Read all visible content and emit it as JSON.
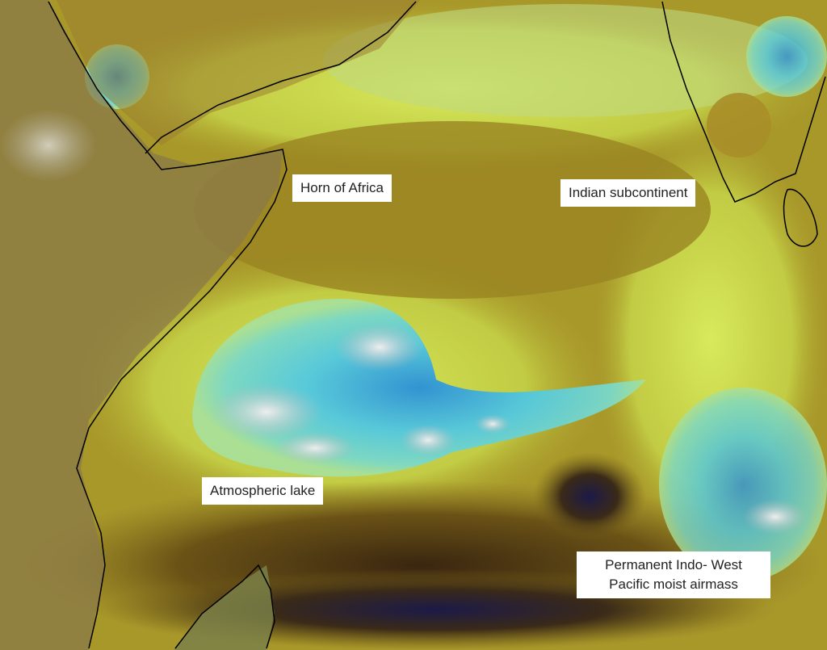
{
  "map": {
    "labels": {
      "horn": "Horn of Africa",
      "india": "Indian subcontinent",
      "lake": "Atmospheric lake",
      "airmass_line1": "Permanent Indo- West",
      "airmass_line2": "Pacific moist airmass"
    },
    "colors": {
      "dry_olive": "#a8982a",
      "moist_yellow_green": "#d6e660",
      "very_dry_brown": "#4a3410",
      "deep_navy": "#1c1a48",
      "lake_cyan": "#5cd6d6",
      "lake_blue": "#2a8fd8",
      "cloud": "#d8d8d8",
      "land": "#8a7a50",
      "coastline": "#000000"
    }
  }
}
